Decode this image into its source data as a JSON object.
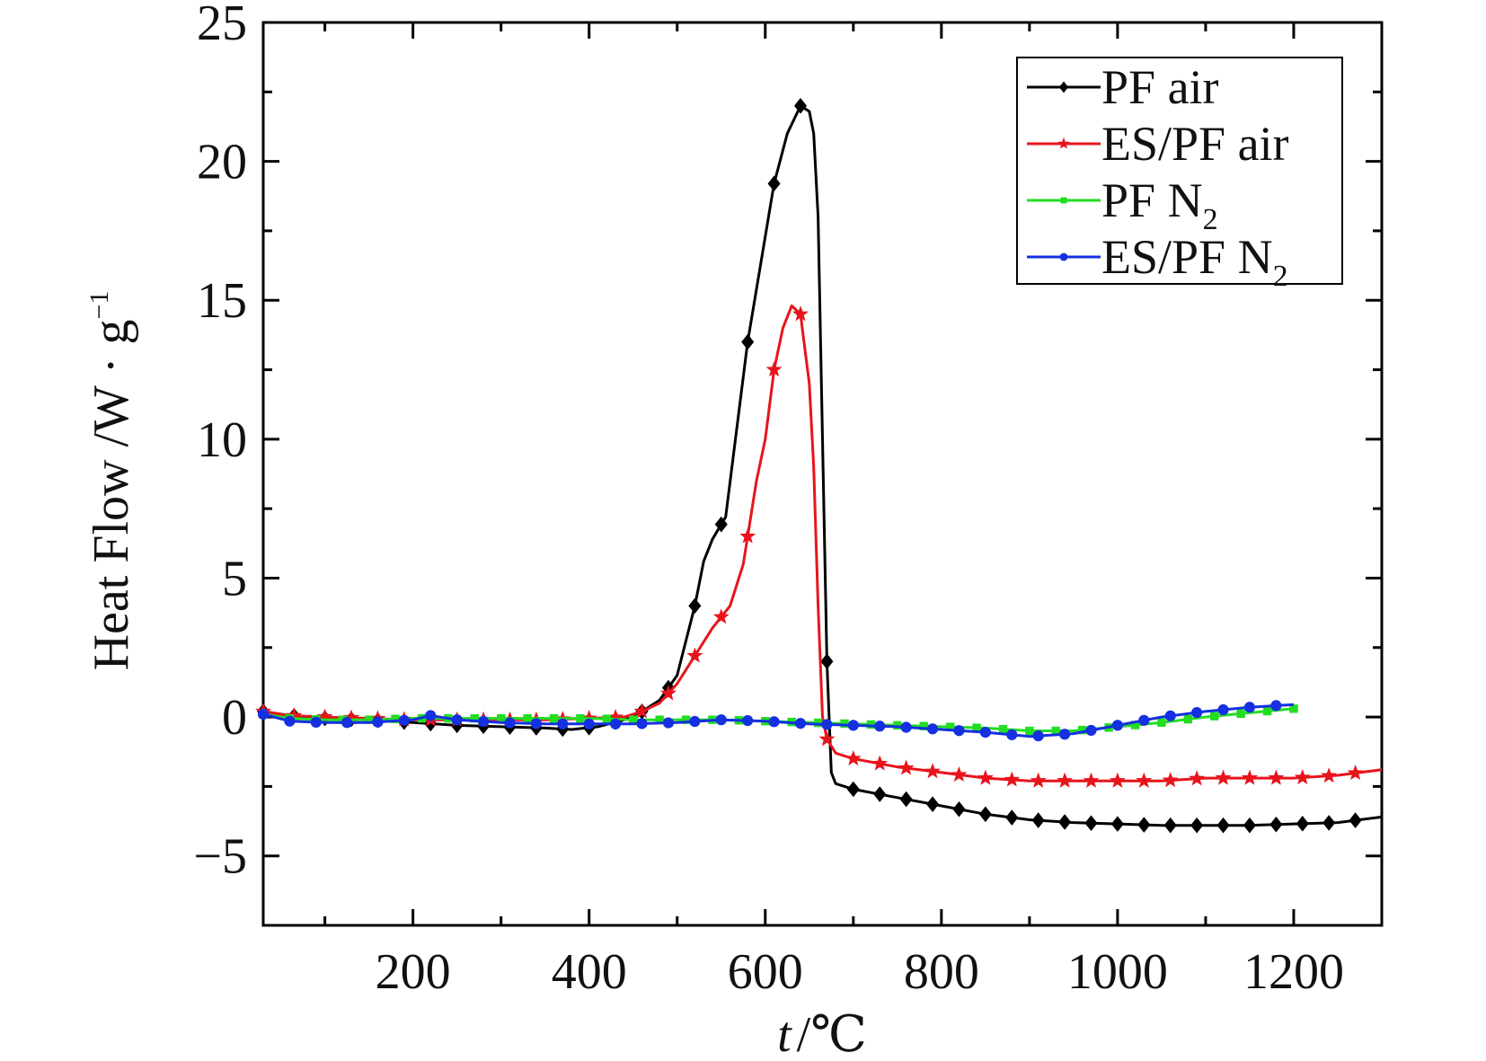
{
  "chart_data": {
    "type": "line",
    "xlabel_var": "t",
    "xlabel_unit": "/℃",
    "ylabel_main": "Heat Flow /W · g",
    "ylabel_sup": "−1",
    "xlim": [
      30,
      1300
    ],
    "ylim": [
      -7.5,
      25
    ],
    "xticks": [
      200,
      400,
      600,
      800,
      1000,
      1200
    ],
    "yticks": [
      -5,
      0,
      5,
      10,
      15,
      20,
      25
    ],
    "ytick_labels": [
      "−5",
      "0",
      "5",
      "10",
      "15",
      "20",
      "25"
    ],
    "legend_position": "top-right",
    "series": [
      {
        "name": "PF air",
        "name_sub": "",
        "color": "#000000",
        "marker": "diamond",
        "x": [
          30,
          60,
          100,
          150,
          200,
          250,
          300,
          350,
          380,
          410,
          440,
          460,
          480,
          500,
          520,
          530,
          540,
          555,
          580,
          610,
          625,
          640,
          650,
          655,
          660,
          665,
          670,
          675,
          680,
          700,
          750,
          800,
          850,
          900,
          950,
          1000,
          1050,
          1100,
          1150,
          1200,
          1250,
          1300
        ],
        "y": [
          0.2,
          0.05,
          -0.05,
          -0.1,
          -0.2,
          -0.3,
          -0.35,
          -0.4,
          -0.45,
          -0.35,
          -0.1,
          0.2,
          0.6,
          1.5,
          4.0,
          5.6,
          6.4,
          7.2,
          13.5,
          19.2,
          21.0,
          22.0,
          21.8,
          21.0,
          18.0,
          10.0,
          2.0,
          -2.0,
          -2.4,
          -2.6,
          -2.9,
          -3.2,
          -3.5,
          -3.7,
          -3.8,
          -3.85,
          -3.9,
          -3.9,
          -3.9,
          -3.85,
          -3.8,
          -3.6
        ],
        "marker_x": [
          30,
          65,
          100,
          130,
          160,
          190,
          220,
          250,
          280,
          310,
          340,
          370,
          400,
          430,
          460,
          490,
          520,
          550,
          580,
          610,
          640,
          670,
          700,
          730,
          760,
          790,
          820,
          850,
          880,
          910,
          940,
          970,
          1000,
          1030,
          1060,
          1090,
          1120,
          1150,
          1180,
          1210,
          1240,
          1270
        ]
      },
      {
        "name": "ES/PF air",
        "name_sub": "",
        "color": "#e8141c",
        "marker": "star",
        "x": [
          30,
          60,
          100,
          150,
          200,
          250,
          300,
          350,
          400,
          440,
          460,
          480,
          500,
          520,
          540,
          560,
          575,
          590,
          600,
          610,
          620,
          630,
          640,
          650,
          655,
          660,
          665,
          670,
          680,
          700,
          750,
          800,
          850,
          900,
          950,
          1000,
          1050,
          1100,
          1150,
          1200,
          1250,
          1300
        ],
        "y": [
          0.2,
          0.05,
          0.0,
          -0.05,
          -0.1,
          -0.1,
          -0.1,
          -0.1,
          -0.05,
          0.0,
          0.2,
          0.5,
          1.2,
          2.2,
          3.2,
          4.0,
          5.5,
          8.5,
          10.0,
          12.5,
          14.0,
          14.8,
          14.5,
          12.0,
          9.0,
          4.0,
          0.0,
          -0.8,
          -1.3,
          -1.5,
          -1.8,
          -2.0,
          -2.2,
          -2.3,
          -2.3,
          -2.3,
          -2.3,
          -2.2,
          -2.2,
          -2.2,
          -2.1,
          -1.9
        ],
        "marker_x": [
          30,
          65,
          100,
          130,
          160,
          190,
          220,
          250,
          280,
          310,
          340,
          370,
          400,
          430,
          460,
          490,
          520,
          550,
          580,
          610,
          640,
          670,
          700,
          730,
          760,
          790,
          820,
          850,
          880,
          910,
          940,
          970,
          1000,
          1030,
          1060,
          1090,
          1120,
          1150,
          1180,
          1210,
          1240,
          1270
        ]
      },
      {
        "name": "PF N",
        "name_sub": "2",
        "color": "#22dd22",
        "marker": "square",
        "x": [
          30,
          60,
          100,
          150,
          200,
          250,
          300,
          350,
          400,
          450,
          500,
          550,
          600,
          650,
          700,
          750,
          800,
          850,
          900,
          950,
          1000,
          1050,
          1100,
          1150,
          1200
        ],
        "y": [
          0.1,
          -0.05,
          -0.1,
          -0.1,
          -0.05,
          -0.05,
          -0.05,
          -0.05,
          -0.05,
          -0.1,
          -0.1,
          -0.1,
          -0.15,
          -0.2,
          -0.25,
          -0.3,
          -0.35,
          -0.4,
          -0.5,
          -0.5,
          -0.35,
          -0.2,
          0.0,
          0.15,
          0.3
        ],
        "marker_x": [
          30,
          60,
          90,
          120,
          150,
          180,
          210,
          240,
          270,
          300,
          330,
          360,
          390,
          420,
          450,
          480,
          510,
          540,
          570,
          600,
          630,
          660,
          690,
          720,
          750,
          780,
          810,
          840,
          870,
          900,
          930,
          960,
          990,
          1020,
          1050,
          1080,
          1110,
          1140,
          1170,
          1200
        ]
      },
      {
        "name": "ES/PF N",
        "name_sub": "2",
        "color": "#1530e0",
        "marker": "circle",
        "x": [
          30,
          60,
          100,
          150,
          200,
          220,
          250,
          300,
          350,
          400,
          450,
          500,
          550,
          600,
          650,
          700,
          750,
          800,
          850,
          900,
          950,
          1000,
          1050,
          1100,
          1150,
          1200
        ],
        "y": [
          0.1,
          -0.15,
          -0.2,
          -0.2,
          -0.1,
          0.05,
          -0.1,
          -0.2,
          -0.25,
          -0.25,
          -0.25,
          -0.2,
          -0.1,
          -0.15,
          -0.25,
          -0.3,
          -0.35,
          -0.45,
          -0.55,
          -0.7,
          -0.6,
          -0.3,
          0.0,
          0.2,
          0.35,
          0.45
        ],
        "marker_x": [
          30,
          60,
          90,
          125,
          160,
          190,
          220,
          250,
          280,
          310,
          340,
          370,
          400,
          430,
          460,
          490,
          520,
          550,
          580,
          610,
          640,
          670,
          700,
          730,
          760,
          790,
          820,
          850,
          880,
          910,
          940,
          970,
          1000,
          1030,
          1060,
          1090,
          1120,
          1150,
          1180
        ]
      }
    ]
  }
}
